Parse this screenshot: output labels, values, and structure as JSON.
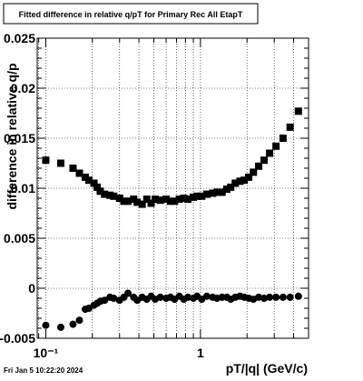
{
  "chart_data": {
    "type": "scatter",
    "title": "Fitted difference in relative q/pT  for Primary Rec All EtapT",
    "xlabel": "pT/|q| (GeV/c)",
    "ylabel": "difference in relative q/p",
    "x_scale": "log",
    "xlim": [
      0.088,
      5.0
    ],
    "ylim": [
      -0.005,
      0.025
    ],
    "grid": true,
    "x_ticks": [
      {
        "value": 0.1,
        "label": "10⁻¹"
      },
      {
        "value": 1,
        "label": "1"
      }
    ],
    "y_ticks": [
      {
        "value": -0.005,
        "label": "-0.005"
      },
      {
        "value": 0,
        "label": "0"
      },
      {
        "value": 0.005,
        "label": "0.005"
      },
      {
        "value": 0.01,
        "label": "0.01"
      },
      {
        "value": 0.015,
        "label": "0.015"
      },
      {
        "value": 0.02,
        "label": "0.02"
      },
      {
        "value": 0.025,
        "label": "0.025"
      }
    ],
    "footer": "Fri Jan  5 10:22:20 2024",
    "series": [
      {
        "marker": "square",
        "x": [
          0.1,
          0.125,
          0.15,
          0.165,
          0.18,
          0.19,
          0.205,
          0.215,
          0.225,
          0.24,
          0.26,
          0.275,
          0.3,
          0.32,
          0.34,
          0.37,
          0.39,
          0.42,
          0.45,
          0.48,
          0.51,
          0.55,
          0.6,
          0.64,
          0.68,
          0.73,
          0.78,
          0.83,
          0.9,
          0.95,
          1.02,
          1.1,
          1.2,
          1.28,
          1.38,
          1.48,
          1.57,
          1.68,
          1.8,
          1.92,
          2.05,
          2.2,
          2.38,
          2.58,
          2.8,
          3.08,
          3.42,
          3.8,
          4.3
        ],
        "y": [
          0.0128,
          0.0125,
          0.012,
          0.0115,
          0.0111,
          0.0108,
          0.0105,
          0.0101,
          0.0097,
          0.0094,
          0.0093,
          0.0092,
          0.009,
          0.0087,
          0.0087,
          0.0089,
          0.0086,
          0.0084,
          0.0089,
          0.0085,
          0.0089,
          0.0088,
          0.0089,
          0.0087,
          0.0087,
          0.0089,
          0.009,
          0.0089,
          0.0091,
          0.0092,
          0.0092,
          0.0094,
          0.0095,
          0.0096,
          0.0096,
          0.0099,
          0.0101,
          0.0105,
          0.0107,
          0.0108,
          0.0111,
          0.0116,
          0.0122,
          0.0128,
          0.0135,
          0.0142,
          0.015,
          0.0161,
          0.0177
        ]
      },
      {
        "marker": "circle",
        "x": [
          0.1,
          0.125,
          0.15,
          0.165,
          0.18,
          0.19,
          0.205,
          0.215,
          0.225,
          0.24,
          0.26,
          0.275,
          0.3,
          0.32,
          0.34,
          0.37,
          0.39,
          0.42,
          0.45,
          0.48,
          0.51,
          0.55,
          0.6,
          0.64,
          0.68,
          0.73,
          0.78,
          0.83,
          0.9,
          0.95,
          1.02,
          1.1,
          1.2,
          1.28,
          1.38,
          1.48,
          1.57,
          1.68,
          1.8,
          1.92,
          2.05,
          2.2,
          2.38,
          2.58,
          2.8,
          3.08,
          3.42,
          3.8,
          4.3
        ],
        "y": [
          -0.0037,
          -0.0039,
          -0.0036,
          -0.0032,
          -0.0021,
          -0.002,
          -0.0017,
          -0.0015,
          -0.0013,
          -0.0012,
          -0.0009,
          -0.001,
          -0.0012,
          -0.0009,
          -0.0005,
          -0.0009,
          -0.0012,
          -0.0009,
          -0.0011,
          -0.0008,
          -0.0011,
          -0.0009,
          -0.001,
          -0.0009,
          -0.0011,
          -0.0008,
          -0.0011,
          -0.0009,
          -0.001,
          -0.0008,
          -0.0011,
          -0.0008,
          -0.0009,
          -0.001,
          -0.0009,
          -0.0009,
          -0.0011,
          -0.0009,
          -0.0008,
          -0.0009,
          -0.001,
          -0.0011,
          -0.0009,
          -0.001,
          -0.0009,
          -0.0009,
          -0.0009,
          -0.0009,
          -0.0008
        ]
      }
    ]
  }
}
